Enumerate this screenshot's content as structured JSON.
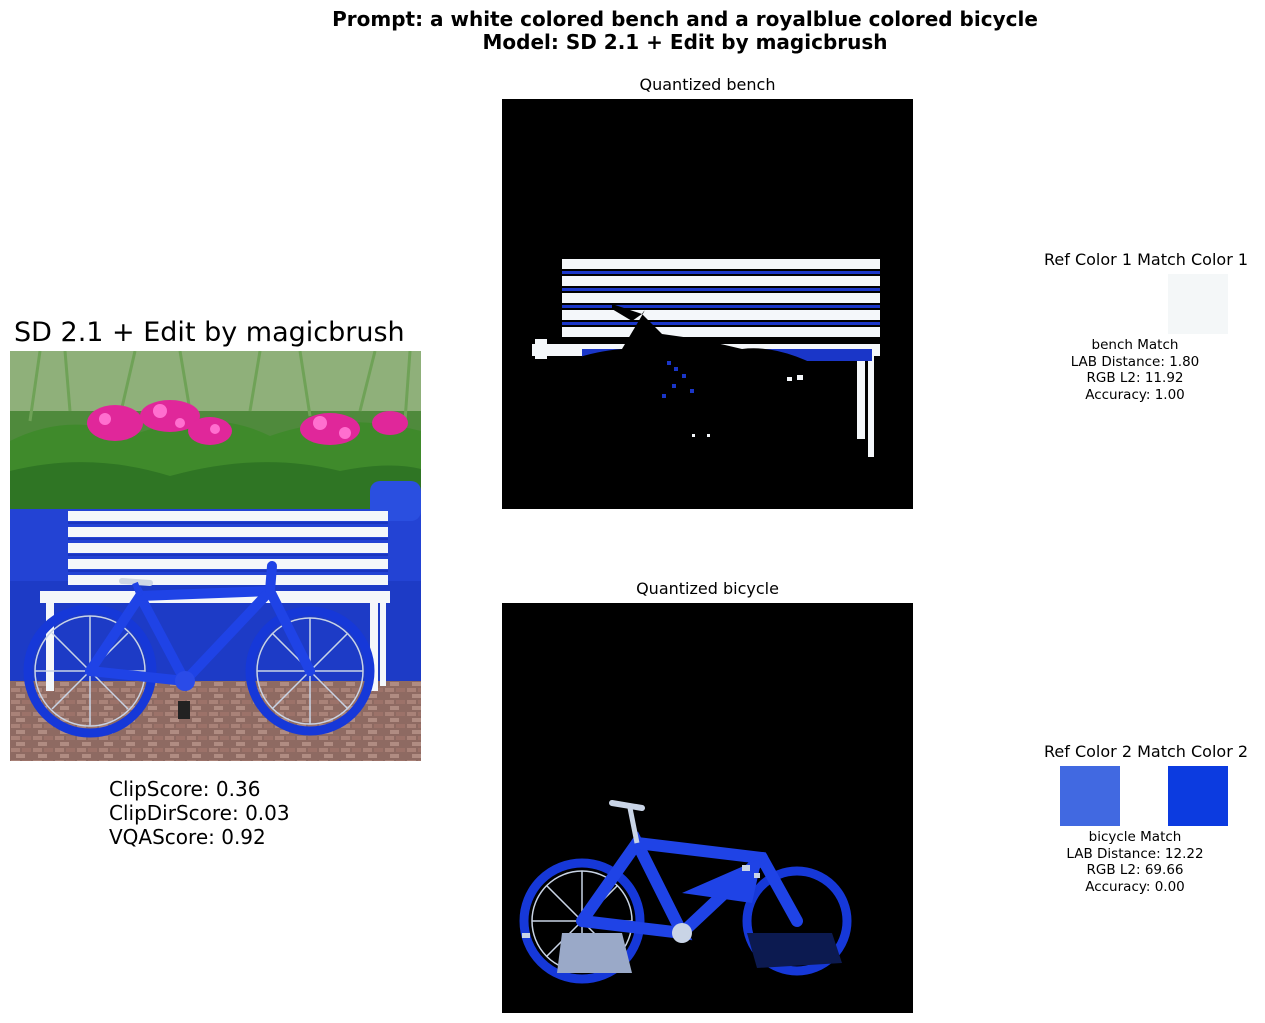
{
  "header": {
    "prompt_line": "Prompt: a white colored bench and a royalblue colored bicycle",
    "model_line": "Model: SD 2.1 + Edit by magicbrush"
  },
  "main_image": {
    "title": "SD 2.1 + Edit by magicbrush",
    "metrics": {
      "clip_score": "ClipScore: 0.36",
      "clip_dir_score": "ClipDirScore: 0.03",
      "vqa_score": "VQAScore: 0.92"
    }
  },
  "quantized": [
    {
      "title": "Quantized bench"
    },
    {
      "title": "Quantized bicycle"
    }
  ],
  "matches": [
    {
      "ref_label": "Ref Color 1",
      "match_label": "Match Color 1",
      "ref_color": "#ffffff",
      "match_color": "#f4f7f8",
      "name_line": "bench Match",
      "lab_line": "LAB Distance: 1.80",
      "rgb_line": "RGB L2: 11.92",
      "acc_line": "Accuracy: 1.00"
    },
    {
      "ref_label": "Ref Color 2",
      "match_label": "Match Color 2",
      "ref_color": "#4169e1",
      "match_color": "#0c3be0",
      "name_line": "bicycle Match",
      "lab_line": "LAB Distance: 12.22",
      "rgb_line": "RGB L2: 69.66",
      "acc_line": "Accuracy: 0.00"
    }
  ]
}
